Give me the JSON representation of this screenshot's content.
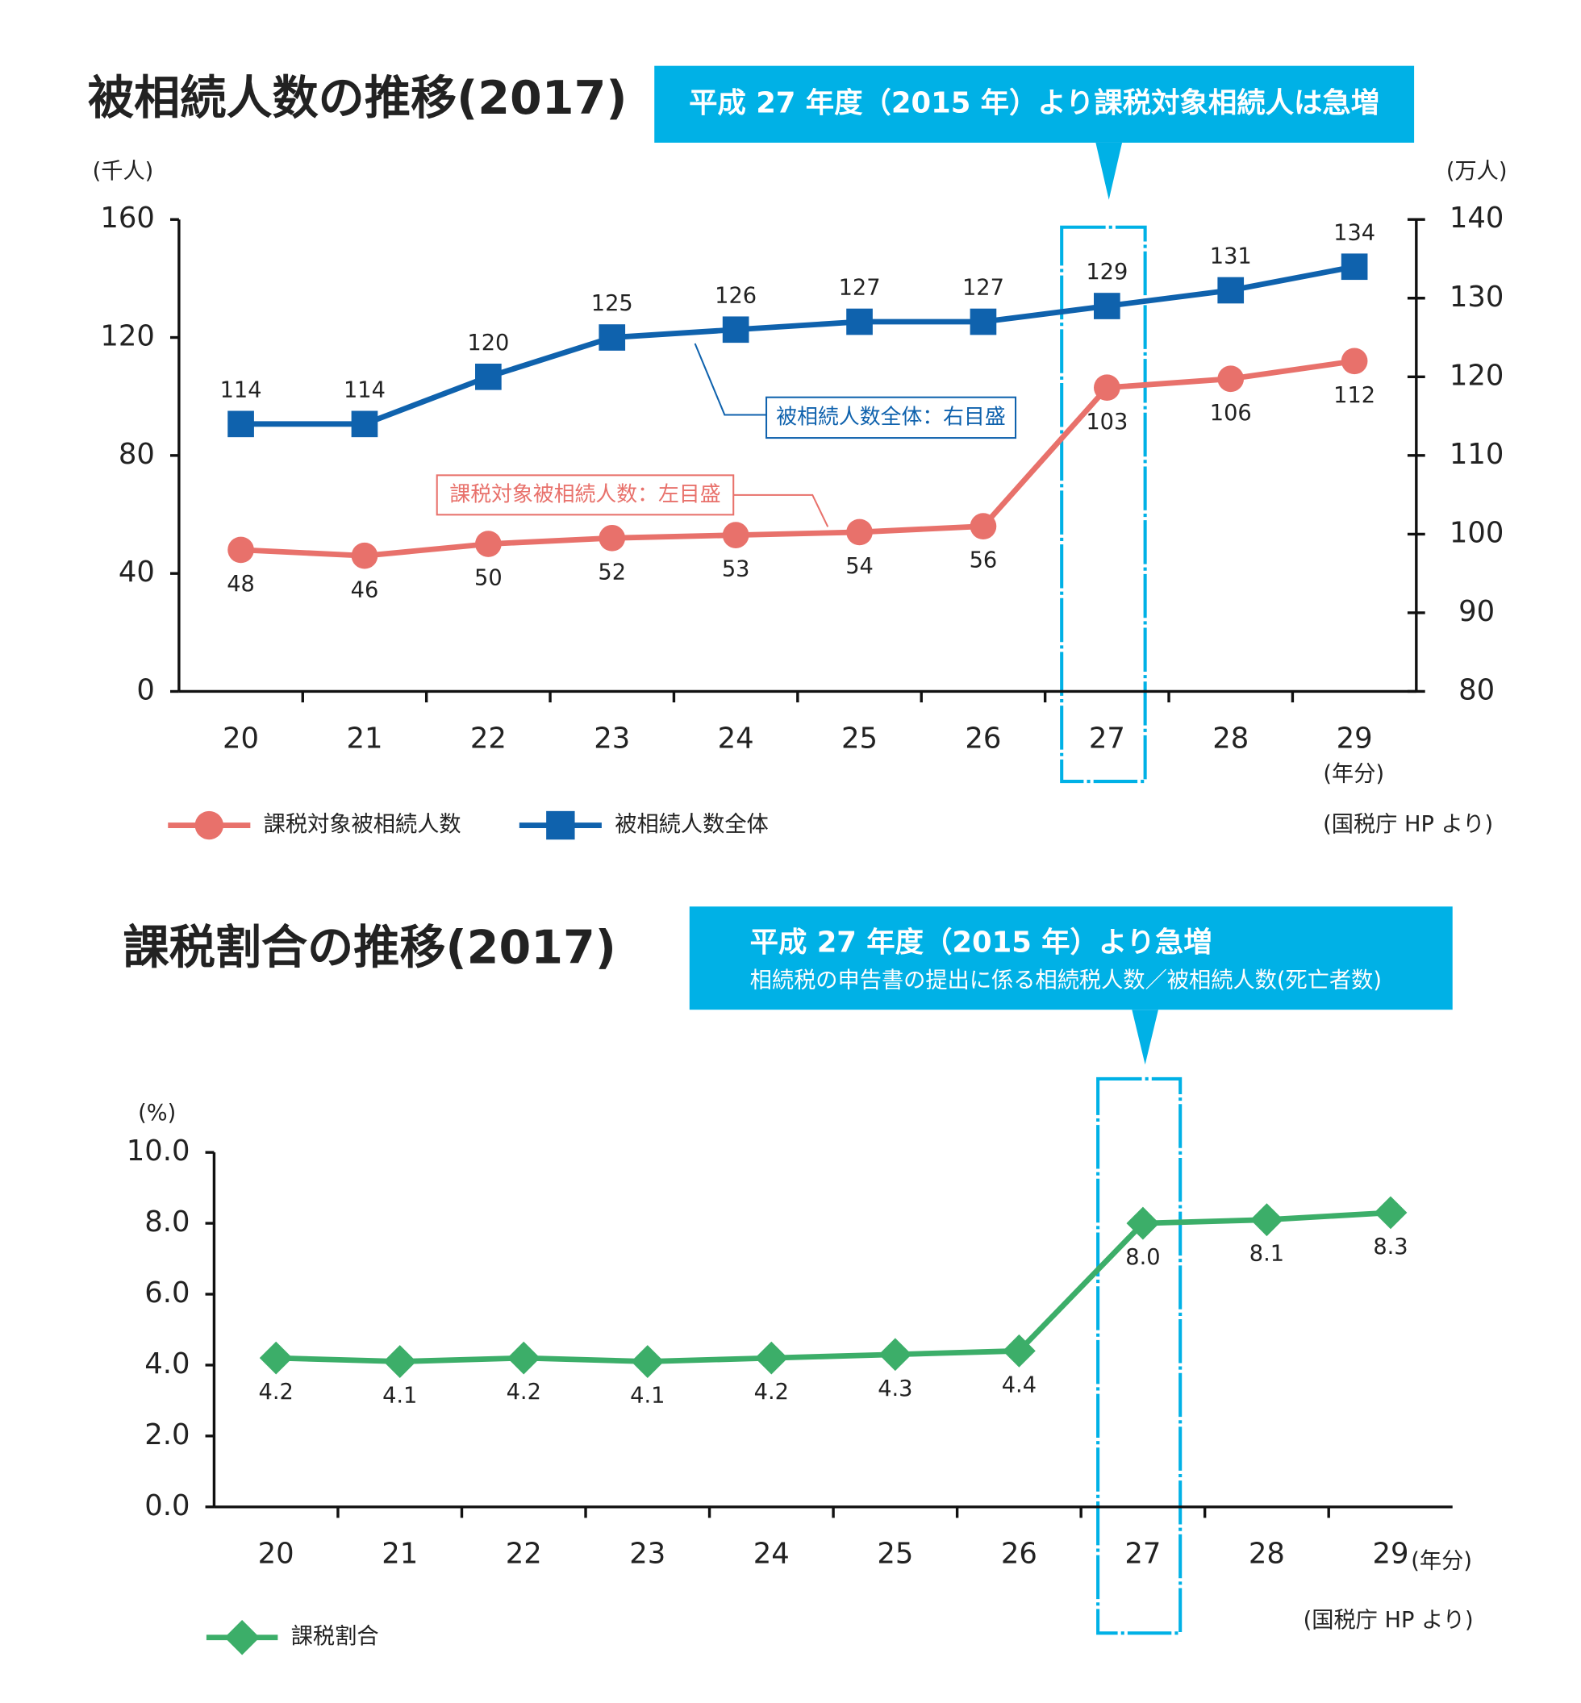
{
  "chart_data": [
    {
      "type": "line",
      "title": "被相続人数の推移(2017)",
      "callout": "平成 27 年度（2015 年）より課税対象相続人は急増",
      "y_label": "(千人)",
      "y2_label": "(万人)",
      "x_unit": "(年分)",
      "source": "(国税庁 HP より)",
      "annotations": [
        "被相続人数全体：右目盛",
        "課税対象被相続人数：左目盛"
      ],
      "categories": [
        "20",
        "21",
        "22",
        "23",
        "24",
        "25",
        "26",
        "27",
        "28",
        "29"
      ],
      "series": [
        {
          "name": "課税対象被相続人数",
          "color": "#e8716b",
          "marker": "circle",
          "values": [
            48,
            46,
            50,
            52,
            53,
            54,
            56,
            103,
            106,
            112
          ]
        },
        {
          "name": "被相続人数全体",
          "color": "#0f62ad",
          "marker": "square",
          "axis": "y2",
          "values": [
            114,
            114,
            120,
            125,
            126,
            127,
            127,
            129,
            131,
            134
          ]
        }
      ],
      "ylim": [
        0,
        160
      ],
      "yticks": [
        0,
        40,
        80,
        120,
        160
      ],
      "y2lim": [
        80,
        140
      ],
      "y2ticks": [
        80,
        90,
        100,
        110,
        120,
        130,
        140
      ]
    },
    {
      "type": "line",
      "title": "課税割合の推移(2017)",
      "callout": "平成 27 年度（2015 年）より急増",
      "callout_subtitle": "相続税の申告書の提出に係る相続税人数／被相続人数(死亡者数)",
      "y_label": "(%)",
      "x_unit": "(年分)",
      "source": "(国税庁 HP より)",
      "categories": [
        "20",
        "21",
        "22",
        "23",
        "24",
        "25",
        "26",
        "27",
        "28",
        "29"
      ],
      "series": [
        {
          "name": "課税割合",
          "color": "#3cae69",
          "marker": "diamond",
          "values": [
            4.2,
            4.1,
            4.2,
            4.1,
            4.2,
            4.3,
            4.4,
            8.0,
            8.1,
            8.3
          ],
          "value_labels": [
            "4.2",
            "4.1",
            "4.2",
            "4.1",
            "4.2",
            "4.3",
            "4.4",
            "8.0",
            "8.1",
            "8.3"
          ]
        }
      ],
      "ylim": [
        0,
        10
      ],
      "yticks": [
        {
          "value": 0,
          "label": "0.0"
        },
        {
          "value": 2,
          "label": "2.0"
        },
        {
          "value": 4,
          "label": "4.0"
        },
        {
          "value": 6,
          "label": "6.0"
        },
        {
          "value": 8,
          "label": "8.0"
        },
        {
          "value": 10,
          "label": "10.0"
        }
      ]
    }
  ]
}
